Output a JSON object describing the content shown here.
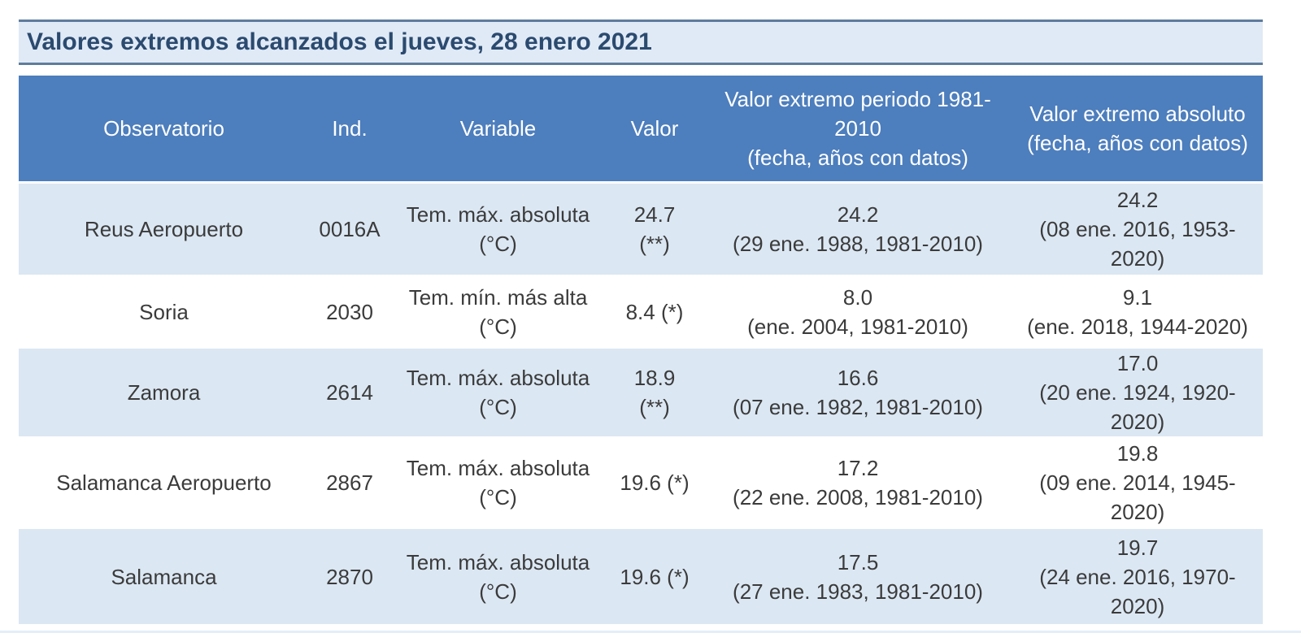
{
  "title": "Valores extremos alcanzados el jueves, 28 enero 2021",
  "colors": {
    "header_blue": "#4d7ebd",
    "row_light_blue": "#dbe7f3",
    "row_white": "#ffffff",
    "title_bar_background": "#e0eaf6",
    "title_text": "#2b4a6f",
    "divider_line": "#5f7c9c",
    "body_text": "#3b3b3b",
    "header_text": "#ffffff"
  },
  "table": {
    "columns": {
      "observatorio": "Observatorio",
      "ind": "Ind.",
      "variable": "Variable",
      "valor": "Valor",
      "extremo_periodo": "Valor extremo periodo 1981-\n2010\n(fecha, años con datos)",
      "extremo_absoluto": "Valor extremo absoluto\n(fecha, años con datos)"
    },
    "rows": [
      {
        "observatorio": "Reus Aeropuerto",
        "ind": "0016A",
        "variable": "Tem. máx. absoluta\n(°C)",
        "valor": "24.7\n(**)",
        "extremo_periodo": "24.2\n(29 ene. 1988, 1981-2010)",
        "extremo_absoluto": "24.2\n(08 ene. 2016, 1953-\n2020)"
      },
      {
        "observatorio": "Soria",
        "ind": "2030",
        "variable": "Tem. mín. más alta\n(°C)",
        "valor": "8.4 (*)",
        "extremo_periodo": "8.0\n(ene. 2004, 1981-2010)",
        "extremo_absoluto": "9.1\n(ene. 2018, 1944-2020)"
      },
      {
        "observatorio": "Zamora",
        "ind": "2614",
        "variable": "Tem. máx. absoluta\n(°C)",
        "valor": "18.9\n(**)",
        "extremo_periodo": "16.6\n(07 ene. 1982, 1981-2010)",
        "extremo_absoluto": "17.0\n(20 ene. 1924, 1920-\n2020)"
      },
      {
        "observatorio": "Salamanca Aeropuerto",
        "ind": "2867",
        "variable": "Tem. máx. absoluta\n(°C)",
        "valor": "19.6 (*)",
        "extremo_periodo": "17.2\n(22 ene. 2008, 1981-2010)",
        "extremo_absoluto": "19.8\n(09 ene. 2014, 1945-\n2020)"
      },
      {
        "observatorio": "Salamanca",
        "ind": "2870",
        "variable": "Tem. máx. absoluta\n(°C)",
        "valor": "19.6 (*)",
        "extremo_periodo": "17.5\n(27 ene. 1983, 1981-2010)",
        "extremo_absoluto": "19.7\n(24 ene. 2016, 1970-\n2020)"
      }
    ]
  }
}
